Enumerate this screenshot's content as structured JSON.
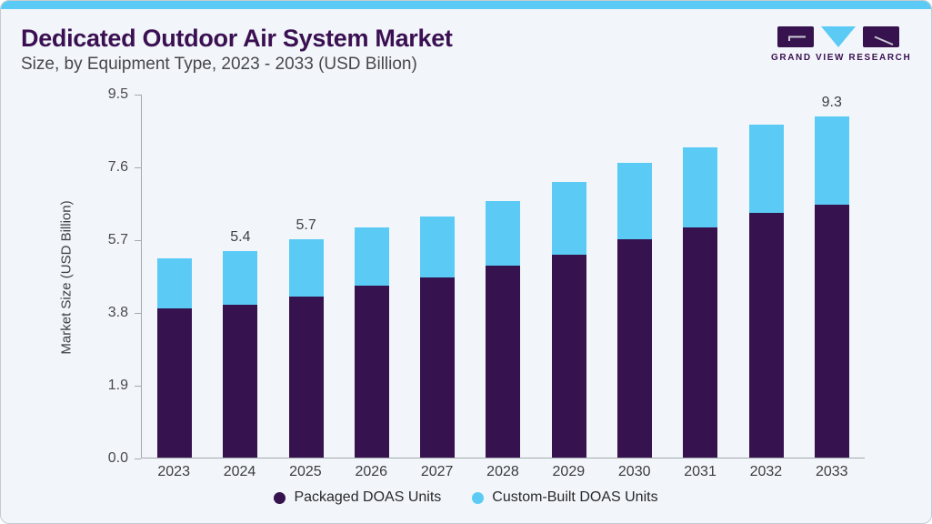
{
  "header": {
    "title": "Dedicated Outdoor Air System Market",
    "subtitle": "Size, by Equipment Type, 2023 - 2033 (USD Billion)"
  },
  "logo": {
    "name": "Grand View Research logo",
    "text": "GRAND VIEW RESEARCH"
  },
  "colors": {
    "accent_blue": "#5BCBF5",
    "dark_purple": "#36124E",
    "title_purple": "#3B1052",
    "card_background": "#F2F6FA",
    "axis_gray": "#A3A9B0"
  },
  "chart_data": {
    "type": "bar",
    "stacked": true,
    "title": "Dedicated Outdoor Air System Market Size, by Equipment Type, 2023 - 2033 (USD Billion)",
    "categories": [
      "2023",
      "2024",
      "2025",
      "2026",
      "2027",
      "2028",
      "2029",
      "2030",
      "2031",
      "2032",
      "2033"
    ],
    "series": [
      {
        "name": "Packaged DOAS Units",
        "color": "#36124E",
        "values": [
          3.9,
          4.0,
          4.2,
          4.5,
          4.7,
          5.0,
          5.3,
          5.7,
          6.0,
          6.4,
          6.9
        ]
      },
      {
        "name": "Custom-Built DOAS Units",
        "color": "#5BCBF5",
        "values": [
          1.3,
          1.4,
          1.5,
          1.5,
          1.6,
          1.7,
          1.9,
          2.0,
          2.1,
          2.3,
          2.4
        ]
      }
    ],
    "totals": [
      5.2,
      5.4,
      5.7,
      6.0,
      6.3,
      6.7,
      7.2,
      7.7,
      8.1,
      8.7,
      9.3
    ],
    "data_labels": [
      "",
      "5.4",
      "5.7",
      "",
      "",
      "",
      "",
      "",
      "",
      "",
      "9.3"
    ],
    "xlabel": "",
    "ylabel": "Market Size (USD Billion)",
    "yticks": [
      "0.0",
      "1.9",
      "3.8",
      "5.7",
      "7.6",
      "9.5"
    ],
    "ylim": [
      0,
      9.5
    ],
    "grid": false,
    "legend_position": "bottom"
  }
}
